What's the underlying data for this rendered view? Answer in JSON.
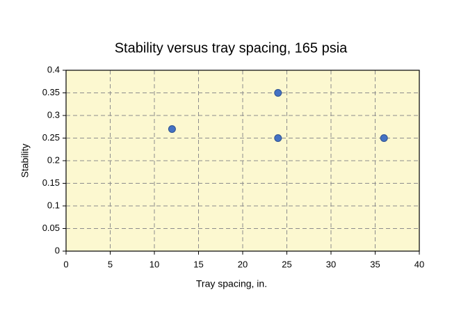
{
  "chart_data": {
    "type": "scatter",
    "title": "Stability versus tray spacing, 165 psia",
    "x_label": "Tray spacing, in.",
    "y_label": "Stability",
    "x": [
      12,
      24,
      24,
      36
    ],
    "values": [
      0.27,
      0.35,
      0.25,
      0.25
    ],
    "color": "#4472c4",
    "xlim": [
      0,
      40
    ],
    "xticks": [
      0,
      5,
      10,
      15,
      20,
      25,
      30,
      35,
      40
    ],
    "ylim": [
      0,
      0.4
    ],
    "yticks": [
      0,
      0.05,
      0.1,
      0.15,
      0.2,
      0.25,
      0.3,
      0.35,
      0.4
    ],
    "grid": true
  }
}
